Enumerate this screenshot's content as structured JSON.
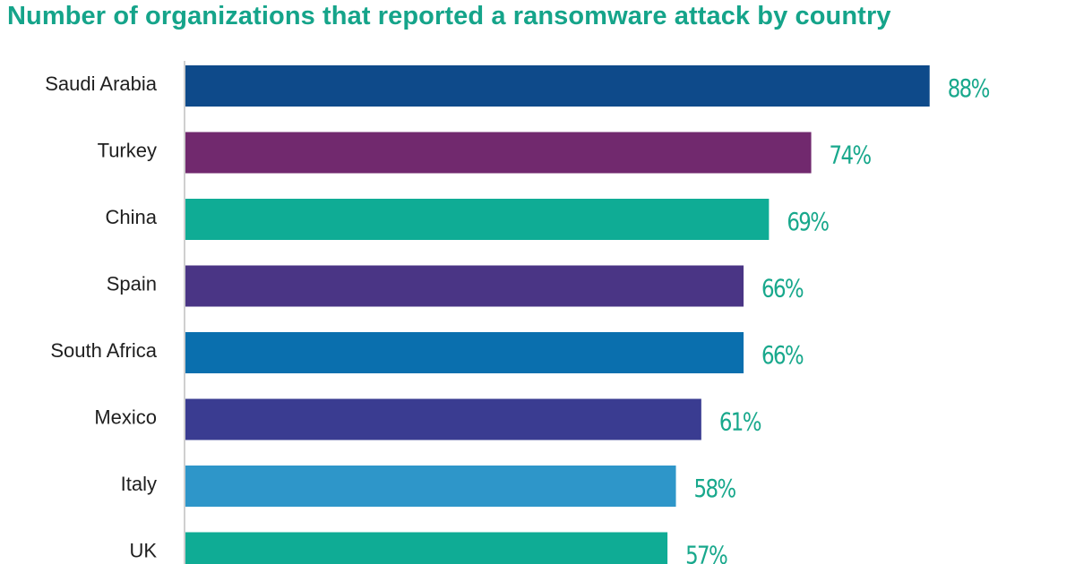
{
  "title": "Number of organizations that reported a ransomware attack by country",
  "chart_data": {
    "type": "bar",
    "orientation": "horizontal",
    "title": "Number of organizations that reported a ransomware attack by country",
    "xlabel": "",
    "ylabel": "",
    "xlim": [
      0,
      100
    ],
    "grid": false,
    "legend": "none",
    "value_label_color": "#18a88c",
    "categories": [
      "Saudi Arabia",
      "Turkey",
      "China",
      "Spain",
      "South Africa",
      "Mexico",
      "Italy",
      "UK"
    ],
    "values": [
      88,
      74,
      69,
      66,
      66,
      61,
      58,
      57
    ],
    "value_labels": [
      "88%",
      "74%",
      "69%",
      "66%",
      "66%",
      "61%",
      "58%",
      "57%"
    ],
    "colors": [
      "#0e4a8a",
      "#71296e",
      "#0fac95",
      "#4a3585",
      "#0a6fae",
      "#3a3c91",
      "#2e96c9",
      "#0fac95"
    ]
  }
}
